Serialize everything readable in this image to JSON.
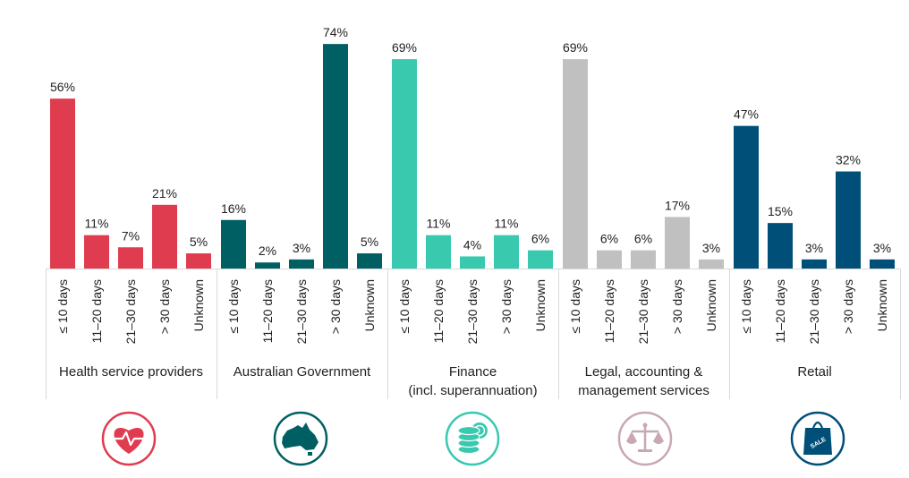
{
  "chart_data": {
    "type": "bar",
    "unit": "%",
    "categories": [
      "≤ 10 days",
      "11–20 days",
      "21–30 days",
      "> 30 days",
      "Unknown"
    ],
    "ylim": [
      0,
      80
    ],
    "groups": [
      {
        "label_lines": [
          "Health service providers"
        ],
        "color": "#e03c50",
        "icon": "heart-pulse-icon",
        "values": [
          56,
          11,
          7,
          21,
          5
        ],
        "labels": [
          "56%",
          "11%",
          "7%",
          "21%",
          "5%"
        ]
      },
      {
        "label_lines": [
          "Australian Government"
        ],
        "color": "#005f62",
        "icon": "australia-map-icon",
        "values": [
          16,
          2,
          3,
          74,
          5
        ],
        "labels": [
          "16%",
          "2%",
          "3%",
          "74%",
          "5%"
        ]
      },
      {
        "label_lines": [
          "Finance",
          "(incl. superannuation)"
        ],
        "color": "#38c9af",
        "icon": "coins-icon",
        "values": [
          69,
          11,
          4,
          11,
          6
        ],
        "labels": [
          "69%",
          "11%",
          "4%",
          "11%",
          "6%"
        ]
      },
      {
        "label_lines": [
          "Legal, accounting &",
          "management services"
        ],
        "color": "#c0c0c0",
        "icon": "scales-icon",
        "values": [
          69,
          6,
          6,
          17,
          3
        ],
        "labels": [
          "69%",
          "6%",
          "6%",
          "17%",
          "3%"
        ]
      },
      {
        "label_lines": [
          "Retail"
        ],
        "color": "#004f78",
        "icon": "sale-bag-icon",
        "values": [
          47,
          15,
          3,
          32,
          3
        ],
        "labels": [
          "47%",
          "15%",
          "3%",
          "32%",
          "3%"
        ]
      }
    ]
  },
  "icons": {
    "heart_color": "#e03c50",
    "gov_color": "#005f62",
    "finance_color": "#38c9af",
    "legal_color": "#c8a8b4",
    "retail_color": "#004f78",
    "sale_text": "SALE"
  }
}
